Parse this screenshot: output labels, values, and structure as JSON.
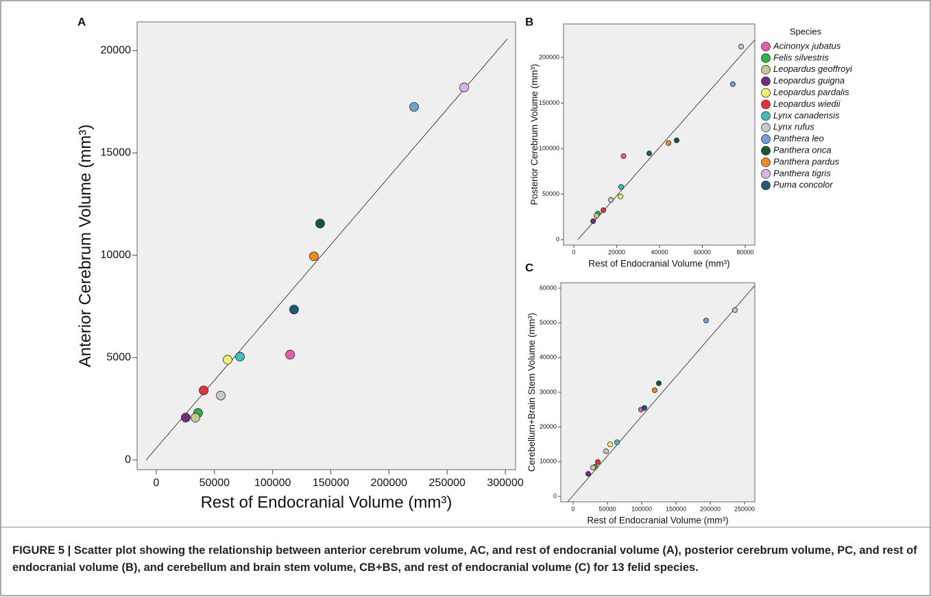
{
  "chart_data": [
    {
      "type": "scatter",
      "panel_label": "A",
      "x_label": "Rest of Endocranial Volume (mm³)",
      "y_label": "Anterior Cerebrum Volume (mm³)",
      "x": [
        115000,
        35900,
        33600,
        25300,
        61300,
        40700,
        71900,
        55400,
        221600,
        140800,
        135500,
        264600,
        118400
      ],
      "values": [
        5150,
        2300,
        2070,
        2070,
        4900,
        3400,
        5050,
        3150,
        17250,
        11550,
        9950,
        18200,
        7350
      ],
      "xlim": [
        -16500,
        308800
      ],
      "ylim": [
        -470,
        21400
      ],
      "xticks": [
        0,
        50000,
        100000,
        150000,
        200000,
        250000,
        300000
      ],
      "yticks": [
        0,
        5000,
        10000,
        15000,
        20000
      ],
      "fit_line": {
        "x": [
          -8800,
          301700
        ],
        "y": [
          0,
          20569
        ]
      }
    },
    {
      "type": "scatter",
      "panel_label": "B",
      "x_label": "Rest of Endocranial Volume (mm³)",
      "y_label": "Posterior Cerebrum Volume (mm³)",
      "x": [
        23200,
        11200,
        10600,
        9000,
        21800,
        13800,
        22100,
        17300,
        74200,
        48000,
        44200,
        78100,
        35200
      ],
      "values": [
        91700,
        28600,
        26300,
        20300,
        47400,
        32300,
        57900,
        43600,
        170700,
        109000,
        106000,
        212000,
        94700
      ],
      "xlim": [
        -4800,
        84480
      ],
      "ylim": [
        -6000,
        236800
      ],
      "xticks": [
        0,
        20000,
        40000,
        60000,
        80000
      ],
      "yticks": [
        0,
        50000,
        100000,
        150000,
        200000
      ],
      "fit_line": {
        "x": [
          1900,
          84500
        ],
        "y": [
          0,
          219500
        ]
      }
    },
    {
      "type": "scatter",
      "panel_label": "C",
      "x_label": "Rest of Endocranial Volume (mm³)",
      "y_label": "Cerebellum+Brain Stem Volume (mm³)",
      "x": [
        99000,
        32000,
        29000,
        22000,
        54000,
        36000,
        64000,
        48000,
        194000,
        125000,
        119000,
        236000,
        104000
      ],
      "values": [
        25000,
        8500,
        8300,
        6500,
        15000,
        9900,
        15600,
        13000,
        50700,
        32600,
        30600,
        53700,
        25500
      ],
      "xlim": [
        -18000,
        265000
      ],
      "ylim": [
        -1580,
        61580
      ],
      "xticks": [
        0,
        50000,
        100000,
        150000,
        200000,
        250000
      ],
      "yticks": [
        0,
        10000,
        20000,
        30000,
        40000,
        50000,
        60000
      ],
      "fit_line": {
        "x": [
          -8000,
          265000
        ],
        "y": [
          -1580,
          60800
        ]
      }
    }
  ],
  "legend": {
    "title": "Species",
    "names": [
      "Acinonyx jubatus",
      "Felis silvestris",
      "Leopardus geoffroyi",
      "Leopardus guigna",
      "Leopardus pardalis",
      "Leopardus wiedii",
      "Lynx canadensis",
      "Lynx rufus",
      "Panthera leo",
      "Panthera onca",
      "Panthera pardus",
      "Panthera tigris",
      "Puma concolor"
    ],
    "colors": [
      "#e75bb5",
      "#2db34a",
      "#c9c78e",
      "#7a2a7e",
      "#f5f06a",
      "#e8323a",
      "#3fbfc0",
      "#c8c8c8",
      "#6fa1d6",
      "#1a5a2f",
      "#f08a1e",
      "#d9b6e8",
      "#1f5a78"
    ]
  },
  "caption": "FIGURE 5 | Scatter plot showing the relationship between anterior cerebrum volume, AC, and rest of endocranial volume (A), posterior cerebrum volume, PC, and rest of endocranial volume (B), and cerebellum and brain stem volume, CB+BS, and rest of endocranial volume (C) for 13 felid species."
}
